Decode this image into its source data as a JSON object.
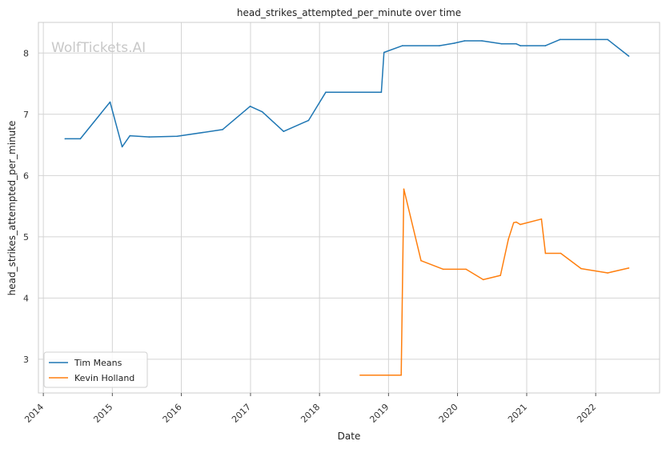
{
  "watermark": "WolfTickets.AI",
  "chart_data": {
    "type": "line",
    "title": "head_strikes_attempted_per_minute over time",
    "xlabel": "Date",
    "ylabel": "head_strikes_attempted_per_minute",
    "x_ticks": [
      "2014",
      "2015",
      "2016",
      "2017",
      "2018",
      "2019",
      "2020",
      "2021",
      "2022"
    ],
    "y_ticks": [
      3,
      4,
      5,
      6,
      7,
      8
    ],
    "xlim": [
      "2013-12-06",
      "2022-12-05"
    ],
    "ylim": [
      2.45,
      8.5
    ],
    "grid": true,
    "legend_position": "lower-left",
    "series": [
      {
        "name": "Tim Means",
        "color": "#1f77b4",
        "points": [
          [
            "2014-04-26",
            6.6
          ],
          [
            "2014-07-16",
            6.6
          ],
          [
            "2014-12-20",
            7.2
          ],
          [
            "2015-02-22",
            6.47
          ],
          [
            "2015-04-04",
            6.65
          ],
          [
            "2015-07-15",
            6.63
          ],
          [
            "2015-12-10",
            6.64
          ],
          [
            "2016-08-06",
            6.75
          ],
          [
            "2016-12-30",
            7.13
          ],
          [
            "2017-03-04",
            7.04
          ],
          [
            "2017-06-25",
            6.72
          ],
          [
            "2017-11-04",
            6.9
          ],
          [
            "2018-02-03",
            7.36
          ],
          [
            "2018-11-24",
            7.36
          ],
          [
            "2018-12-08",
            8.01
          ],
          [
            "2019-03-16",
            8.12
          ],
          [
            "2019-09-27",
            8.12
          ],
          [
            "2019-12-14",
            8.16
          ],
          [
            "2020-02-08",
            8.2
          ],
          [
            "2020-05-09",
            8.2
          ],
          [
            "2020-08-22",
            8.15
          ],
          [
            "2020-11-07",
            8.15
          ],
          [
            "2020-11-28",
            8.12
          ],
          [
            "2021-04-10",
            8.12
          ],
          [
            "2021-06-26",
            8.22
          ],
          [
            "2022-03-05",
            8.22
          ],
          [
            "2022-06-25",
            7.95
          ]
        ]
      },
      {
        "name": "Kevin Holland",
        "color": "#ff7f0e",
        "points": [
          [
            "2018-08-04",
            2.74
          ],
          [
            "2019-03-09",
            2.74
          ],
          [
            "2019-03-23",
            5.78
          ],
          [
            "2019-06-22",
            4.61
          ],
          [
            "2019-10-18",
            4.47
          ],
          [
            "2020-02-15",
            4.47
          ],
          [
            "2020-05-16",
            4.3
          ],
          [
            "2020-08-15",
            4.37
          ],
          [
            "2020-09-26",
            4.96
          ],
          [
            "2020-10-24",
            5.23
          ],
          [
            "2020-11-07",
            5.24
          ],
          [
            "2020-11-28",
            5.2
          ],
          [
            "2021-03-20",
            5.29
          ],
          [
            "2021-04-10",
            4.73
          ],
          [
            "2021-06-30",
            4.73
          ],
          [
            "2021-10-16",
            4.48
          ],
          [
            "2022-03-05",
            4.41
          ],
          [
            "2022-06-25",
            4.49
          ]
        ]
      }
    ]
  }
}
